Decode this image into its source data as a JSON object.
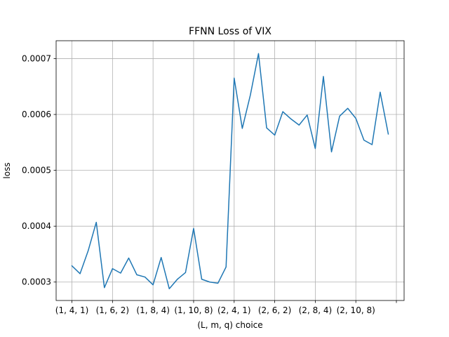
{
  "chart_data": {
    "type": "line",
    "title": "FFNN Loss of VIX",
    "xlabel": "(L, m, q) choice",
    "ylabel": "loss",
    "grid": true,
    "line_color": "#1f77b4",
    "x_tick_labels": [
      "(1, 4, 1)",
      "(1, 6, 2)",
      "(1, 8, 4)",
      "(1, 10, 8)",
      "(2, 4, 1)",
      "(2, 6, 2)",
      "(2, 8, 4)",
      "(2, 10, 8)",
      ""
    ],
    "x_tick_positions": [
      0,
      5,
      10,
      15,
      20,
      25,
      30,
      35,
      40
    ],
    "y_tick_labels": [
      "0.0003",
      "0.0004",
      "0.0005",
      "0.0006",
      "0.0007"
    ],
    "y_tick_values": [
      0.0003,
      0.0004,
      0.0005,
      0.0006,
      0.0007
    ],
    "xlim": [
      -1.95,
      40.95
    ],
    "ylim": [
      0.000267,
      0.000732
    ],
    "series": [
      {
        "values": [
          0.000329,
          0.000315,
          0.000356,
          0.000407,
          0.00029,
          0.000324,
          0.000316,
          0.000343,
          0.000313,
          0.000309,
          0.000295,
          0.000344,
          0.000288,
          0.000305,
          0.000317,
          0.000396,
          0.000305,
          0.0003,
          0.000298,
          0.000327,
          0.000665,
          0.000575,
          0.000635,
          0.000709,
          0.000576,
          0.000563,
          0.000605,
          0.000592,
          0.000581,
          0.000599,
          0.000539,
          0.000668,
          0.000533,
          0.000597,
          0.000611,
          0.000593,
          0.000554,
          0.000546,
          0.00064,
          0.000565
        ]
      }
    ]
  }
}
